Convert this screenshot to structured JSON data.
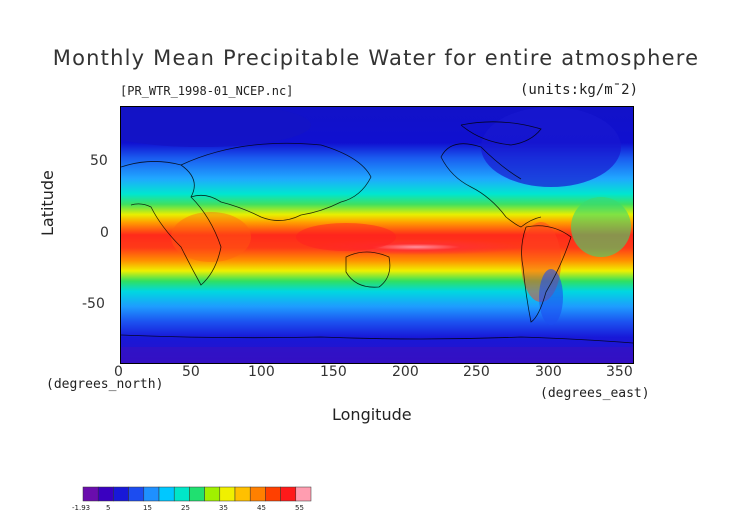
{
  "title": "Monthly Mean Precipitable Water for entire atmosphere",
  "file_label": "[PR_WTR_1998-01_NCEP.nc]",
  "units_label": "(units:kg/m¯2)",
  "axes": {
    "ylabel": "Latitude",
    "xlabel": "Longitude",
    "yunit": "(degrees_north)",
    "xunit": "(degrees_east)",
    "xticks": [
      "0",
      "50",
      "100",
      "150",
      "200",
      "250",
      "300",
      "350"
    ],
    "yticks": [
      "50",
      "0",
      "-50"
    ]
  },
  "chart_data": {
    "type": "heatmap",
    "title": "Monthly Mean Precipitable Water for entire atmosphere",
    "xlabel": "Longitude",
    "ylabel": "Latitude",
    "xlim": [
      0,
      360
    ],
    "ylim": [
      -90,
      90
    ],
    "colorbar": {
      "min": -1.93,
      "max": 55,
      "tick_labels": [
        "-1.93",
        "5",
        "15",
        "25",
        "35",
        "45",
        "55"
      ],
      "colors": [
        "#6a0dad",
        "#3a00c0",
        "#1818d8",
        "#1c4cf0",
        "#1e90ff",
        "#00c8ff",
        "#00e6c8",
        "#20e070",
        "#a0f000",
        "#f0f000",
        "#ffc000",
        "#ff8000",
        "#ff4000",
        "#ff1a1a",
        "#ff9db0"
      ]
    },
    "zonal_profile": [
      {
        "lat": 90,
        "value": 2
      },
      {
        "lat": 70,
        "value": 4
      },
      {
        "lat": 60,
        "value": 8
      },
      {
        "lat": 50,
        "value": 10
      },
      {
        "lat": 40,
        "value": 15
      },
      {
        "lat": 30,
        "value": 22
      },
      {
        "lat": 20,
        "value": 32
      },
      {
        "lat": 10,
        "value": 42
      },
      {
        "lat": 0,
        "value": 47
      },
      {
        "lat": -10,
        "value": 44
      },
      {
        "lat": -20,
        "value": 32
      },
      {
        "lat": -30,
        "value": 22
      },
      {
        "lat": -40,
        "value": 15
      },
      {
        "lat": -50,
        "value": 12
      },
      {
        "lat": -60,
        "value": 9
      },
      {
        "lat": -70,
        "value": 5
      },
      {
        "lat": -90,
        "value": 1
      }
    ]
  }
}
